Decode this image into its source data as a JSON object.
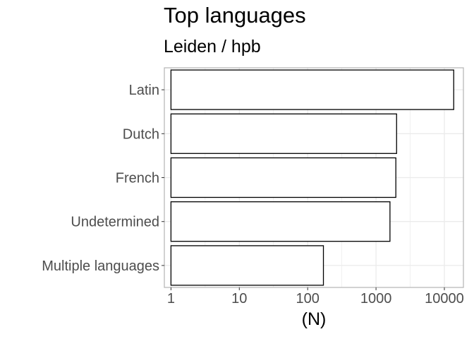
{
  "chart_data": {
    "type": "bar",
    "orientation": "horizontal",
    "title": "Top languages",
    "subtitle": "Leiden / hpb",
    "xlabel": "(N)",
    "ylabel": "",
    "x_scale": "log10",
    "xlim": [
      0.8,
      19000
    ],
    "x_ticks": [
      1,
      10,
      100,
      1000,
      10000
    ],
    "x_tick_labels": [
      "1",
      "10",
      "100",
      "1000",
      "10000"
    ],
    "categories": [
      "Latin",
      "Dutch",
      "French",
      "Undetermined",
      "Multiple languages"
    ],
    "values": [
      13700,
      2000,
      1950,
      1600,
      170
    ],
    "grid": true,
    "bar_fill": "#ffffff",
    "bar_outline": "#000000",
    "panel_border": "#b3b3b3",
    "grid_color": "#ebebeb"
  }
}
